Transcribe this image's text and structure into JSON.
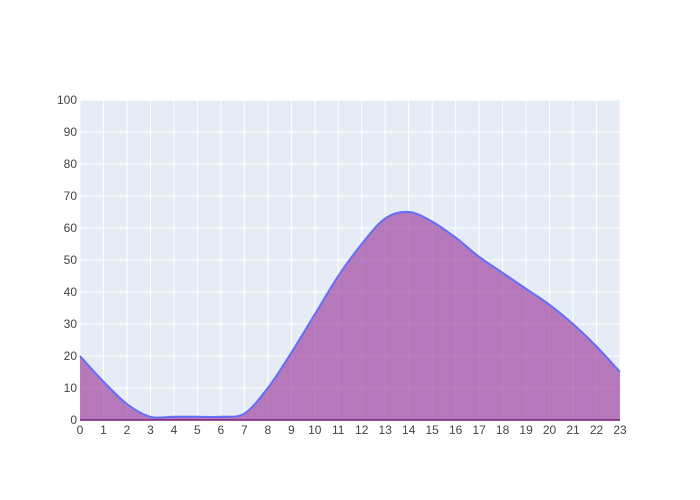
{
  "chart_data": {
    "type": "area",
    "x": [
      0,
      1,
      2,
      3,
      4,
      5,
      6,
      7,
      8,
      9,
      10,
      11,
      12,
      13,
      14,
      15,
      16,
      17,
      18,
      19,
      20,
      21,
      22,
      23
    ],
    "series": [
      {
        "values": [
          20,
          12,
          5,
          1,
          1,
          1,
          1,
          2,
          10,
          21,
          33,
          45,
          55,
          63,
          65,
          62,
          57,
          51,
          46,
          41,
          36,
          30,
          23,
          15
        ]
      }
    ],
    "xlim": [
      0,
      23
    ],
    "ylim": [
      0,
      100
    ],
    "xticks": [
      "0",
      "1",
      "2",
      "3",
      "4",
      "5",
      "6",
      "7",
      "8",
      "9",
      "10",
      "11",
      "12",
      "13",
      "14",
      "15",
      "16",
      "17",
      "18",
      "19",
      "20",
      "21",
      "22",
      "23"
    ],
    "yticks": [
      "0",
      "10",
      "20",
      "30",
      "40",
      "50",
      "60",
      "70",
      "80",
      "90",
      "100"
    ],
    "grid": true,
    "line_color": "#636efa",
    "fill_color": "#9b3a9b",
    "plot_background": "#e5ecf6"
  }
}
